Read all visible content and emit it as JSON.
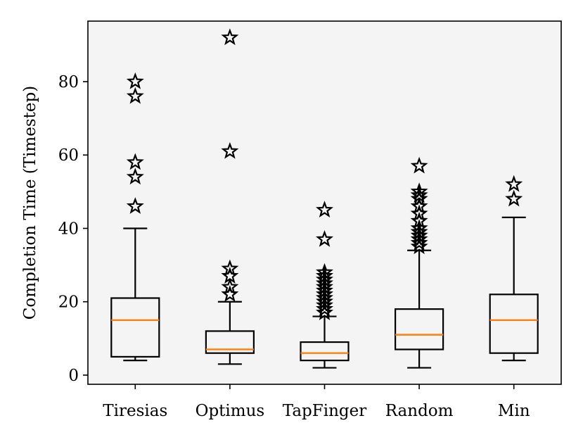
{
  "chart_data": {
    "type": "boxplot",
    "ylabel": "Completion Time (Timestep)",
    "xlabel": "",
    "ylim": [
      -2.5,
      96.5
    ],
    "yticks": [
      0,
      20,
      40,
      60,
      80
    ],
    "grid": false,
    "colors": {
      "plot_background": "#f4f4f4",
      "box": "#000000",
      "median": "#ff7f0e",
      "outlier": "#000000"
    },
    "outlier_marker": "star-icon",
    "categories": [
      "Tiresias",
      "Optimus",
      "TapFinger",
      "Random",
      "Min"
    ],
    "boxes": [
      {
        "name": "Tiresias",
        "whisker_low": 4,
        "q1": 5,
        "median": 15,
        "q3": 21,
        "whisker_high": 40,
        "outliers": [
          46,
          54,
          58,
          76,
          80
        ]
      },
      {
        "name": "Optimus",
        "whisker_low": 3,
        "q1": 6,
        "median": 7,
        "q3": 12,
        "whisker_high": 20,
        "outliers": [
          22,
          24,
          27,
          29,
          61,
          92
        ]
      },
      {
        "name": "TapFinger",
        "whisker_low": 2,
        "q1": 4,
        "median": 6,
        "q3": 9,
        "whisker_high": 16,
        "outliers": [
          17,
          18,
          19,
          20,
          21,
          22,
          23,
          24,
          25,
          26,
          27,
          28,
          37,
          45
        ]
      },
      {
        "name": "Random",
        "whisker_low": 2,
        "q1": 7,
        "median": 11,
        "q3": 18,
        "whisker_high": 34,
        "outliers": [
          35,
          36,
          37,
          38,
          39,
          40,
          42,
          44,
          46,
          48,
          49,
          50,
          57
        ]
      },
      {
        "name": "Min",
        "whisker_low": 4,
        "q1": 6,
        "median": 15,
        "q3": 22,
        "whisker_high": 43,
        "outliers": [
          48,
          52
        ]
      }
    ]
  }
}
